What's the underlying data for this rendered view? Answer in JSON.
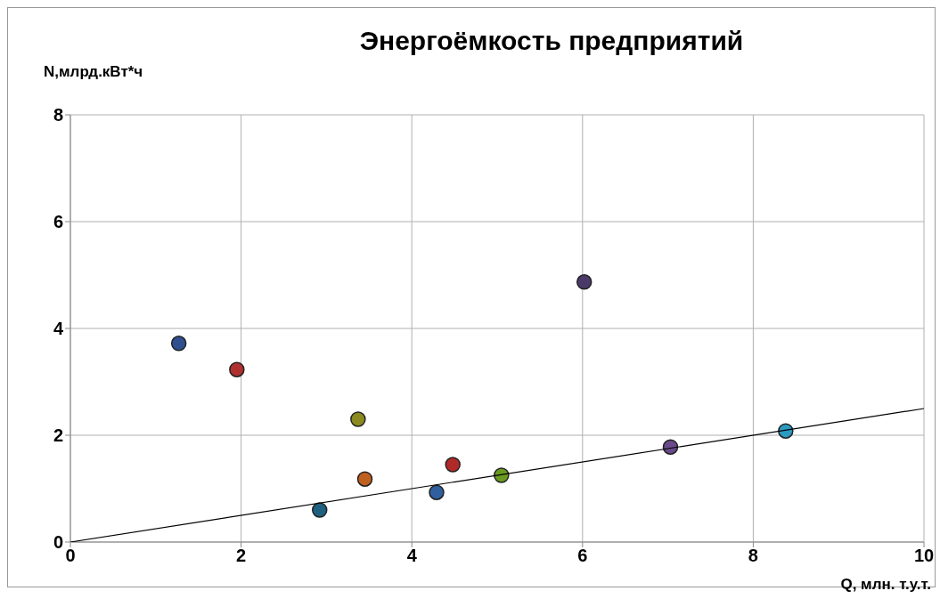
{
  "chart_data": {
    "type": "scatter",
    "title": "Энергоёмкость предприятий",
    "xlabel": "Q, млн. т.у.т.",
    "ylabel": "N,млрд.кВт*ч",
    "xlim": [
      0,
      10
    ],
    "xticks": [
      0,
      2,
      4,
      6,
      8,
      10
    ],
    "ylim": [
      0,
      8
    ],
    "yticks": [
      0,
      2,
      4,
      6,
      8
    ],
    "grid": true,
    "series": [
      {
        "marker": "circle",
        "x": [
          1.27,
          1.95,
          3.37,
          6.02,
          2.92,
          3.45,
          4.29,
          4.48,
          5.05,
          7.03,
          8.38
        ],
        "values": [
          3.72,
          3.23,
          2.3,
          4.87,
          0.6,
          1.18,
          0.93,
          1.45,
          1.25,
          1.78,
          2.08
        ],
        "colors": [
          "#2f4f8f",
          "#b03030",
          "#8a8a20",
          "#4a3a6a",
          "#1f5f7f",
          "#c06020",
          "#2f5f9f",
          "#b02a2a",
          "#6a9a20",
          "#6a4a8a",
          "#2a9ac0"
        ]
      },
      {
        "type": "line",
        "x": [
          0,
          10
        ],
        "values": [
          0,
          2.5
        ],
        "color": "#000000"
      }
    ]
  }
}
